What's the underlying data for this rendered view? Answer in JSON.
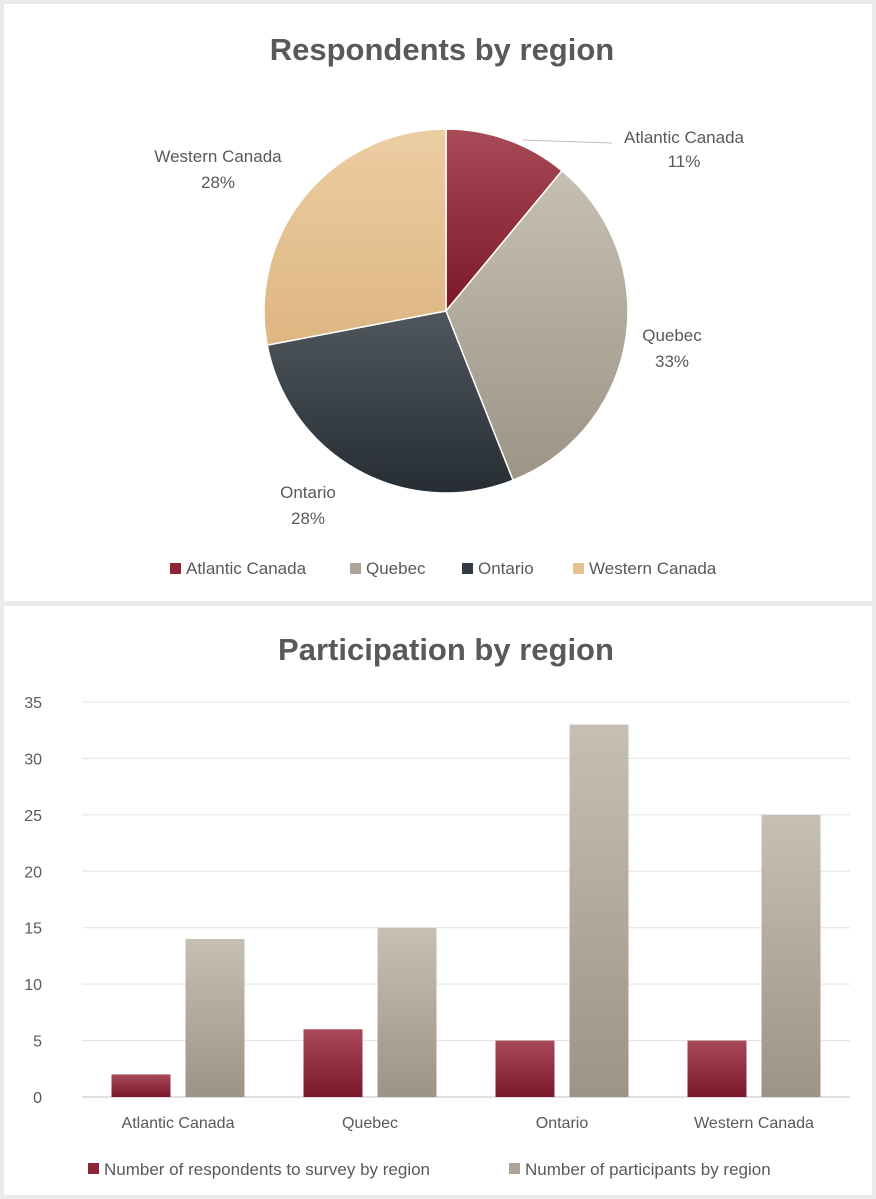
{
  "chart_data": [
    {
      "type": "pie",
      "title": "Respondents by region",
      "categories": [
        "Atlantic Canada",
        "Quebec",
        "Ontario",
        "Western Canada"
      ],
      "values": [
        11,
        33,
        28,
        28
      ],
      "labels": [
        "11%",
        "33%",
        "28%",
        "28%"
      ],
      "colors": [
        "#8e2436",
        "#aca496",
        "#333b42",
        "#e5c291"
      ],
      "legend": "bottom"
    },
    {
      "type": "bar",
      "title": "Participation by region",
      "categories": [
        "Atlantic Canada",
        "Quebec",
        "Ontario",
        "Western Canada"
      ],
      "series": [
        {
          "name": "Number of respondents to survey by region",
          "values": [
            2,
            6,
            5,
            5
          ],
          "color": "#8e2436"
        },
        {
          "name": "Number of participants by region",
          "values": [
            14,
            15,
            33,
            25
          ],
          "color": "#aca496"
        }
      ],
      "yticks": [
        "0",
        "5",
        "10",
        "15",
        "20",
        "25",
        "30",
        "35"
      ],
      "ylim": [
        0,
        35
      ],
      "grid": true,
      "legend": "bottom"
    }
  ]
}
